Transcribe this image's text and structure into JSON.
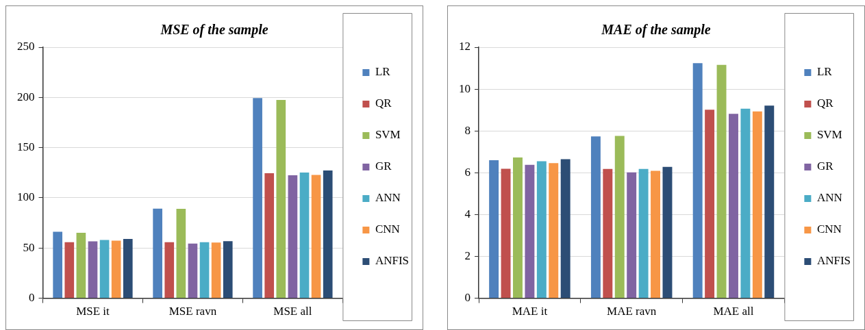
{
  "chart_data": [
    {
      "type": "bar",
      "title": "MSE of the sample",
      "categories": [
        "MSE it",
        "MSE ravn",
        "MSE all"
      ],
      "series": [
        {
          "name": "LR",
          "color": "#4f81bd",
          "values": [
            66.2,
            89.2,
            199.3
          ]
        },
        {
          "name": "QR",
          "color": "#c0504d",
          "values": [
            55.9,
            55.9,
            124.5
          ]
        },
        {
          "name": "SVM",
          "color": "#9bbb59",
          "values": [
            65.2,
            89,
            197.5
          ]
        },
        {
          "name": "GR",
          "color": "#8064a2",
          "values": [
            56.6,
            54.4,
            122.5
          ]
        },
        {
          "name": "ANN",
          "color": "#4bacc6",
          "values": [
            58.1,
            55.9,
            125.2
          ]
        },
        {
          "name": "CNN",
          "color": "#f79646",
          "values": [
            57.4,
            55.4,
            122.8
          ]
        },
        {
          "name": "ANFIS",
          "color": "#2c4d75",
          "values": [
            59.1,
            56.9,
            127.2
          ]
        }
      ],
      "ylim": [
        0,
        250
      ],
      "yticks": [
        0,
        50,
        100,
        150,
        200,
        250
      ],
      "grid": "y",
      "legend": "right"
    },
    {
      "type": "bar",
      "title": "MAE of the sample",
      "categories": [
        "MAE it",
        "MAE ravn",
        "MAE all"
      ],
      "series": [
        {
          "name": "LR",
          "color": "#4f81bd",
          "values": [
            6.6,
            7.74,
            11.24
          ]
        },
        {
          "name": "QR",
          "color": "#c0504d",
          "values": [
            6.19,
            6.18,
            9.01
          ]
        },
        {
          "name": "SVM",
          "color": "#9bbb59",
          "values": [
            6.73,
            7.76,
            11.16
          ]
        },
        {
          "name": "GR",
          "color": "#8064a2",
          "values": [
            6.38,
            6.02,
            8.82
          ]
        },
        {
          "name": "ANN",
          "color": "#4bacc6",
          "values": [
            6.55,
            6.18,
            9.06
          ]
        },
        {
          "name": "CNN",
          "color": "#f79646",
          "values": [
            6.46,
            6.09,
            8.93
          ]
        },
        {
          "name": "ANFIS",
          "color": "#2c4d75",
          "values": [
            6.65,
            6.28,
            9.21
          ]
        }
      ],
      "ylim": [
        0,
        12
      ],
      "yticks": [
        0,
        2,
        4,
        6,
        8,
        10,
        12
      ],
      "grid": "y",
      "legend": "right"
    }
  ]
}
